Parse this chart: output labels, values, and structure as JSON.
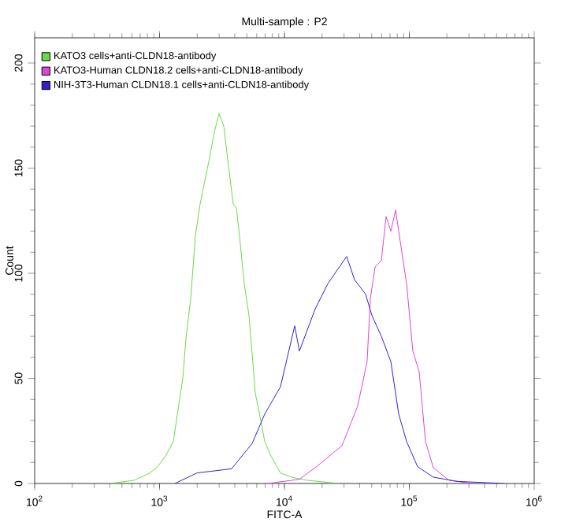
{
  "chart_data": {
    "type": "line",
    "title": "Multi-sample : P2",
    "xlabel": "FITC-A",
    "ylabel": "Count",
    "log": "x",
    "xlim": [
      100,
      1000000
    ],
    "ylim": [
      0,
      212
    ],
    "xticks": [
      {
        "value": 100,
        "label": "10$^{2}$"
      },
      {
        "value": 1000,
        "label": "10$^{3}$"
      },
      {
        "value": 10000,
        "label": "10$^{4}$"
      },
      {
        "value": 100000,
        "label": "10$^{5}$"
      },
      {
        "value": 1000000,
        "label": "10$^{6}$"
      }
    ],
    "yticks": [
      0,
      50,
      100,
      150,
      200
    ],
    "grid": false,
    "legend": "top left",
    "marker": "none",
    "line_style": "solid",
    "series": [
      {
        "name": "KATO3 cells+anti-CLDN18-antibody",
        "color": "#66dd44",
        "x": [
          403,
          624,
          835,
          965,
          1115,
          1290,
          1406,
          1535,
          1627,
          1776,
          1937,
          2113,
          2305,
          2515,
          2742,
          2992,
          3266,
          3565,
          3890,
          4121,
          4365,
          4764,
          5200,
          5508,
          5844,
          6368,
          6950,
          7816,
          9290,
          11400,
          15240,
          27200
        ],
        "values": [
          0,
          1.5,
          5,
          8,
          13,
          20,
          35,
          50,
          69,
          88,
          118,
          133,
          144,
          155,
          167,
          176,
          170,
          151,
          133,
          131,
          118,
          95,
          80,
          62,
          43,
          32,
          20,
          13,
          5,
          3,
          1.5,
          0
        ]
      },
      {
        "name": "KATO3-Human CLDN18.2 cells+anti-CLDN18-antibody",
        "color": "#dd44dd",
        "x": [
          7380,
          13180,
          17620,
          28900,
          38640,
          45900,
          48750,
          53200,
          59700,
          65160,
          71100,
          77600,
          84600,
          95100,
          106700,
          120000,
          134600,
          155600,
          208400,
          322000
        ],
        "values": [
          0,
          2,
          7.5,
          18,
          37,
          58,
          88,
          103,
          106,
          127,
          120,
          130,
          115,
          95,
          63,
          53,
          20,
          7.5,
          1.5,
          0
        ]
      },
      {
        "name": "NIH-3T3-Human CLDN18.1 cells+anti-CLDN18-antibody",
        "color": "#3322cc",
        "x": [
          1327,
          1995,
          3776,
          5508,
          6950,
          9290,
          12080,
          13180,
          17620,
          22230,
          31480,
          36390,
          44670,
          50120,
          59700,
          71100,
          82200,
          95100,
          116400,
          155600,
          241000,
          575000
        ],
        "values": [
          0,
          5,
          7,
          19,
          33,
          46,
          75,
          63,
          83,
          95,
          108,
          97,
          90,
          80,
          70,
          58,
          33,
          20,
          8,
          3,
          1,
          0
        ]
      }
    ]
  }
}
